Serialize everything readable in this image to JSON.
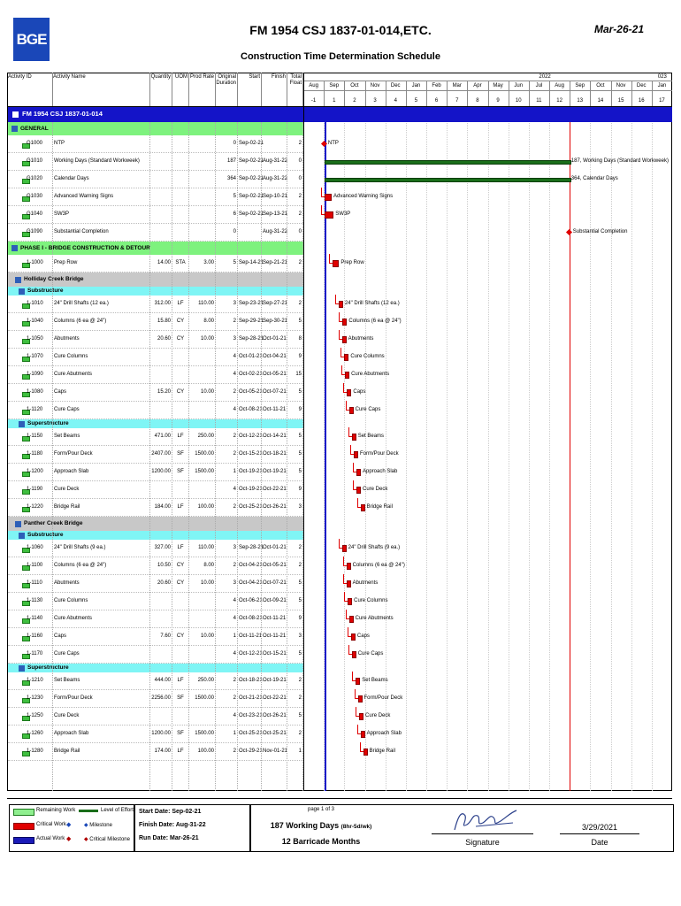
{
  "header": {
    "logo_text": "BGE",
    "title": "FM 1954 CSJ 1837-01-014,ETC.",
    "subtitle": "Construction Time Determination Schedule",
    "date": "Mar-26-21"
  },
  "columns": {
    "activity_id": "Activity ID",
    "activity_name": "Activity Name",
    "quantity": "Quantity",
    "uom": "UOM",
    "prod_rate": "Prod Rate",
    "orig_duration": "Original Duration",
    "start": "Start",
    "finish": "Finish",
    "total_float": "Total Float"
  },
  "timeline": {
    "years": [
      "2022",
      "023"
    ],
    "months": [
      "Aug",
      "Sep",
      "Oct",
      "Nov",
      "Dec",
      "Jan",
      "Feb",
      "Mar",
      "Apr",
      "May",
      "Jun",
      "Jul",
      "Aug",
      "Sep",
      "Oct",
      "Nov",
      "Dec",
      "Jan"
    ],
    "month_nums": [
      "-1",
      "1",
      "2",
      "3",
      "4",
      "5",
      "6",
      "7",
      "8",
      "9",
      "10",
      "11",
      "12",
      "13",
      "14",
      "15",
      "16",
      "17"
    ]
  },
  "project": "FM 1954 CSJ 1837-01-014",
  "groups": {
    "general": "GENERAL",
    "phase1": "PHASE I - BRIDGE CONSTRUCTION & DETOUR",
    "holliday": "Holliday Creek Bridge",
    "substructure": "Substructure",
    "superstructure": "Superstructure",
    "panther": "Panther Creek Bridge"
  },
  "rows": [
    {
      "id": "G1000",
      "name": "NTP",
      "qty": "",
      "uom": "",
      "rate": "",
      "dur": "0",
      "start": "Sep-02-21",
      "finish": "",
      "float": "2",
      "label": "NTP"
    },
    {
      "id": "G1010",
      "name": "Working Days (Standard Workweek)",
      "qty": "",
      "uom": "",
      "rate": "",
      "dur": "187",
      "start": "Sep-02-21",
      "finish": "Aug-31-22",
      "float": "0",
      "label": "187, Working Days (Standard Workweek)"
    },
    {
      "id": "G1020",
      "name": "Calendar Days",
      "qty": "",
      "uom": "",
      "rate": "",
      "dur": "364",
      "start": "Sep-02-21",
      "finish": "Aug-31-22",
      "float": "0",
      "label": "364, Calendar Days"
    },
    {
      "id": "G1030",
      "name": "Advanced Warning Signs",
      "qty": "",
      "uom": "",
      "rate": "",
      "dur": "5",
      "start": "Sep-02-21",
      "finish": "Sep-10-21",
      "float": "2",
      "label": "Advanced Warning Signs"
    },
    {
      "id": "G1040",
      "name": "SW3P",
      "qty": "",
      "uom": "",
      "rate": "",
      "dur": "6",
      "start": "Sep-02-21",
      "finish": "Sep-13-21",
      "float": "2",
      "label": "SW3P"
    },
    {
      "id": "G1090",
      "name": "Substantial Completion",
      "qty": "",
      "uom": "",
      "rate": "",
      "dur": "0",
      "start": "",
      "finish": "Aug-31-22",
      "float": "0",
      "label": "Substantial Completion"
    },
    {
      "id": "1-1000",
      "name": "Prep Row",
      "qty": "14.00",
      "uom": "STA",
      "rate": "3.00",
      "dur": "5",
      "start": "Sep-14-21",
      "finish": "Sep-21-21",
      "float": "2",
      "label": "Prep Row"
    },
    {
      "id": "1-1010",
      "name": "24\" Drill Shafts (12 ea.)",
      "qty": "312.00",
      "uom": "LF",
      "rate": "110.00",
      "dur": "3",
      "start": "Sep-23-21",
      "finish": "Sep-27-21",
      "float": "2",
      "label": "24\" Drill Shafts (12 ea.)"
    },
    {
      "id": "1-1040",
      "name": "Columns (6 ea @ 24\")",
      "qty": "15.80",
      "uom": "CY",
      "rate": "8.00",
      "dur": "2",
      "start": "Sep-29-21",
      "finish": "Sep-30-21",
      "float": "5",
      "label": "Columns (6 ea @ 24\")"
    },
    {
      "id": "1-1050",
      "name": "Abutments",
      "qty": "20.60",
      "uom": "CY",
      "rate": "10.00",
      "dur": "3",
      "start": "Sep-28-21",
      "finish": "Oct-01-21",
      "float": "8",
      "label": "Abutments"
    },
    {
      "id": "1-1070",
      "name": "Cure Columns",
      "qty": "",
      "uom": "",
      "rate": "",
      "dur": "4",
      "start": "Oct-01-21",
      "finish": "Oct-04-21",
      "float": "9",
      "label": "Cure Columns"
    },
    {
      "id": "1-1090",
      "name": "Cure Abutments",
      "qty": "",
      "uom": "",
      "rate": "",
      "dur": "4",
      "start": "Oct-02-21",
      "finish": "Oct-05-21",
      "float": "15",
      "label": "Cure Abutments"
    },
    {
      "id": "1-1080",
      "name": "Caps",
      "qty": "15.20",
      "uom": "CY",
      "rate": "10.00",
      "dur": "2",
      "start": "Oct-05-21",
      "finish": "Oct-07-21",
      "float": "5",
      "label": "Caps"
    },
    {
      "id": "1-1120",
      "name": "Cure Caps",
      "qty": "",
      "uom": "",
      "rate": "",
      "dur": "4",
      "start": "Oct-08-21",
      "finish": "Oct-11-21",
      "float": "9",
      "label": "Cure Caps"
    },
    {
      "id": "1-1150",
      "name": "Set Beams",
      "qty": "471.00",
      "uom": "LF",
      "rate": "250.00",
      "dur": "2",
      "start": "Oct-12-21",
      "finish": "Oct-14-21",
      "float": "5",
      "label": "Set Beams"
    },
    {
      "id": "1-1180",
      "name": "Form/Pour Deck",
      "qty": "2407.00",
      "uom": "SF",
      "rate": "1500.00",
      "dur": "2",
      "start": "Oct-15-21",
      "finish": "Oct-18-21",
      "float": "5",
      "label": "Form/Pour Deck"
    },
    {
      "id": "1-1200",
      "name": "Approach Slab",
      "qty": "1200.00",
      "uom": "SF",
      "rate": "1500.00",
      "dur": "1",
      "start": "Oct-19-21",
      "finish": "Oct-19-21",
      "float": "5",
      "label": "Approach Slab"
    },
    {
      "id": "1-1190",
      "name": "Cure Deck",
      "qty": "",
      "uom": "",
      "rate": "",
      "dur": "4",
      "start": "Oct-19-21",
      "finish": "Oct-22-21",
      "float": "9",
      "label": "Cure Deck"
    },
    {
      "id": "1-1220",
      "name": "Bridge Rail",
      "qty": "184.00",
      "uom": "LF",
      "rate": "100.00",
      "dur": "2",
      "start": "Oct-25-21",
      "finish": "Oct-26-21",
      "float": "3",
      "label": "Bridge Rail"
    },
    {
      "id": "1-1060",
      "name": "24\" Drill Shafts (9 ea.)",
      "qty": "327.00",
      "uom": "LF",
      "rate": "110.00",
      "dur": "3",
      "start": "Sep-28-21",
      "finish": "Oct-01-21",
      "float": "2",
      "label": "24\" Drill Shafts (9 ea.)"
    },
    {
      "id": "1-1100",
      "name": "Columns (6 ea @ 24\")",
      "qty": "10.50",
      "uom": "CY",
      "rate": "8.00",
      "dur": "2",
      "start": "Oct-04-21",
      "finish": "Oct-05-21",
      "float": "2",
      "label": "Columns (6 ea @ 24\")"
    },
    {
      "id": "1-1110",
      "name": "Abutments",
      "qty": "20.60",
      "uom": "CY",
      "rate": "10.00",
      "dur": "3",
      "start": "Oct-04-21",
      "finish": "Oct-07-21",
      "float": "5",
      "label": "Abutments"
    },
    {
      "id": "1-1130",
      "name": "Cure Columns",
      "qty": "",
      "uom": "",
      "rate": "",
      "dur": "4",
      "start": "Oct-06-21",
      "finish": "Oct-09-21",
      "float": "5",
      "label": "Cure Columns"
    },
    {
      "id": "1-1140",
      "name": "Cure Abutments",
      "qty": "",
      "uom": "",
      "rate": "",
      "dur": "4",
      "start": "Oct-08-21",
      "finish": "Oct-11-21",
      "float": "9",
      "label": "Cure Abutments"
    },
    {
      "id": "1-1160",
      "name": "Caps",
      "qty": "7.60",
      "uom": "CY",
      "rate": "10.00",
      "dur": "1",
      "start": "Oct-11-21",
      "finish": "Oct-11-21",
      "float": "3",
      "label": "Caps"
    },
    {
      "id": "1-1170",
      "name": "Cure Caps",
      "qty": "",
      "uom": "",
      "rate": "",
      "dur": "4",
      "start": "Oct-12-21",
      "finish": "Oct-15-21",
      "float": "5",
      "label": "Cure Caps"
    },
    {
      "id": "1-1210",
      "name": "Set Beams",
      "qty": "444.00",
      "uom": "LF",
      "rate": "250.00",
      "dur": "2",
      "start": "Oct-18-21",
      "finish": "Oct-19-21",
      "float": "2",
      "label": "Set Beams"
    },
    {
      "id": "1-1230",
      "name": "Form/Pour Deck",
      "qty": "2256.00",
      "uom": "SF",
      "rate": "1500.00",
      "dur": "2",
      "start": "Oct-21-21",
      "finish": "Oct-22-21",
      "float": "2",
      "label": "Form/Pour Deck"
    },
    {
      "id": "1-1250",
      "name": "Cure Deck",
      "qty": "",
      "uom": "",
      "rate": "",
      "dur": "4",
      "start": "Oct-23-21",
      "finish": "Oct-26-21",
      "float": "5",
      "label": "Cure Deck"
    },
    {
      "id": "1-1260",
      "name": "Approach Slab",
      "qty": "1200.00",
      "uom": "SF",
      "rate": "1500.00",
      "dur": "1",
      "start": "Oct-25-21",
      "finish": "Oct-25-21",
      "float": "2",
      "label": "Approach Slab"
    },
    {
      "id": "1-1280",
      "name": "Bridge Rail",
      "qty": "174.00",
      "uom": "LF",
      "rate": "100.00",
      "dur": "2",
      "start": "Oct-29-21",
      "finish": "Nov-01-21",
      "float": "1",
      "label": "Bridge Rail"
    }
  ],
  "legend": {
    "remaining_work": "Remaining Work",
    "critical_work": "Critical Work",
    "actual_work": "Actual Work",
    "level_of_effort": "Level of Effort",
    "milestone": "Milestone",
    "critical_milestone": "Critical Milestone"
  },
  "footer": {
    "start_date": "Start Date: Sep-02-21",
    "finish_date": "Finish Date: Aug-31-22",
    "run_date": "Run Date: Mar-26-21",
    "page": "page 1 of 3",
    "working_days_main": "187 Working Days",
    "working_days_sub": "(8hr-5d/wk)",
    "barricade": "12 Barricade Months",
    "signature_label": "Signature",
    "signed_date": "3/29/2021",
    "date_label": "Date"
  }
}
